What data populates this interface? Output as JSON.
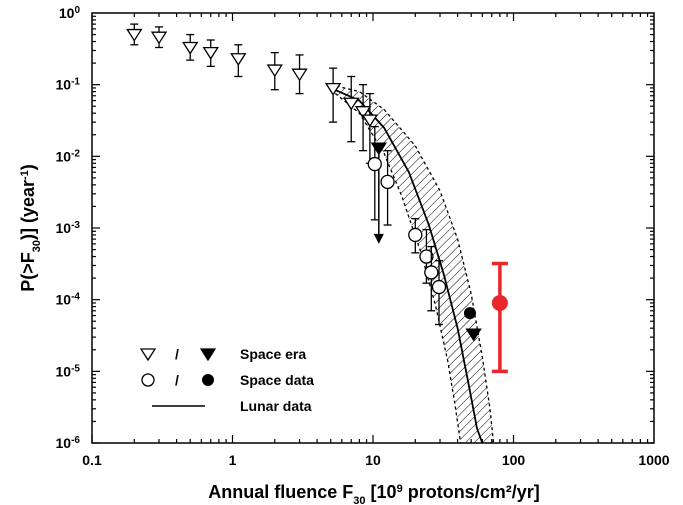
{
  "chart_data": {
    "type": "scatter",
    "x_scale": "log",
    "y_scale": "log",
    "xlim": [
      0.1,
      1000
    ],
    "ylim": [
      1e-06,
      1
    ],
    "x_ticks": [
      {
        "value": 0.1,
        "label": "0.1"
      },
      {
        "value": 1,
        "label": "1"
      },
      {
        "value": 10,
        "label": "10"
      },
      {
        "value": 100,
        "label": "100"
      },
      {
        "value": 1000,
        "label": "1000"
      }
    ],
    "y_ticks": [
      {
        "value": 1,
        "base": "10",
        "exp": "0"
      },
      {
        "value": 0.1,
        "base": "10",
        "exp": "-1"
      },
      {
        "value": 0.01,
        "base": "10",
        "exp": "-2"
      },
      {
        "value": 0.001,
        "base": "10",
        "exp": "-3"
      },
      {
        "value": 0.0001,
        "base": "10",
        "exp": "-4"
      },
      {
        "value": 1e-05,
        "base": "10",
        "exp": "-5"
      },
      {
        "value": 1e-06,
        "base": "10",
        "exp": "-6"
      }
    ],
    "xlabel": {
      "main": "Annual fluence F",
      "sub": "30",
      "rest1": " [10",
      "sup": "9",
      "rest2": " protons/cm²/yr]"
    },
    "ylabel": {
      "p1": "P(>F",
      "sub": "30",
      "p2": ")] (year",
      "sup": "-1",
      "p3": ")"
    },
    "legend": {
      "slash": "/",
      "space_era": "Space era",
      "space_data": "Space data",
      "lunar_data": "Lunar data",
      "position": "bottom-left"
    },
    "series": [
      {
        "name": "Space era",
        "marker": "triangle-open",
        "points": [
          {
            "x": 0.2,
            "y": 0.5,
            "lo": 0.36,
            "hi": 0.7
          },
          {
            "x": 0.3,
            "y": 0.46,
            "lo": 0.33,
            "hi": 0.64
          },
          {
            "x": 0.5,
            "y": 0.33,
            "lo": 0.22,
            "hi": 0.5
          },
          {
            "x": 0.7,
            "y": 0.28,
            "lo": 0.18,
            "hi": 0.42
          },
          {
            "x": 1.1,
            "y": 0.23,
            "lo": 0.13,
            "hi": 0.36
          },
          {
            "x": 2.0,
            "y": 0.16,
            "lo": 0.085,
            "hi": 0.28
          },
          {
            "x": 3.0,
            "y": 0.14,
            "lo": 0.075,
            "hi": 0.26
          },
          {
            "x": 5.2,
            "y": 0.088,
            "lo": 0.03,
            "hi": 0.17
          },
          {
            "x": 7.0,
            "y": 0.055,
            "lo": 0.016,
            "hi": 0.13
          },
          {
            "x": 8.5,
            "y": 0.042,
            "lo": 0.012,
            "hi": 0.1
          },
          {
            "x": 9.5,
            "y": 0.032,
            "lo": 0.008,
            "hi": 0.075
          }
        ]
      },
      {
        "name": "Space era",
        "marker": "triangle-filled",
        "points": [
          {
            "x": 11,
            "y": 0.013,
            "arrow_to": 0.0006
          },
          {
            "x": 52,
            "y": 3.3e-05
          }
        ]
      },
      {
        "name": "Space data",
        "marker": "circle-open",
        "points": [
          {
            "x": 10.3,
            "y": 0.0078,
            "lo": 0.0013,
            "hi": 0.026
          },
          {
            "x": 12.7,
            "y": 0.0044,
            "lo": 0.0011,
            "hi": 0.012
          },
          {
            "x": 20,
            "y": 0.0008,
            "lo": 0.00045,
            "hi": 0.00135
          },
          {
            "x": 24,
            "y": 0.0004,
            "lo": 0.00017,
            "hi": 0.00095
          },
          {
            "x": 26,
            "y": 0.00024,
            "lo": 7e-05,
            "hi": 0.00055
          },
          {
            "x": 29.5,
            "y": 0.00015,
            "lo": 4.5e-05,
            "hi": 0.00035
          }
        ]
      },
      {
        "name": "Space data",
        "marker": "circle-filled",
        "points": [
          {
            "x": 49,
            "y": 6.5e-05
          }
        ]
      },
      {
        "name": "",
        "marker": "circle-filled-red",
        "color": "#e8262b",
        "points": [
          {
            "x": 80,
            "y": 9e-05,
            "lo": 1e-05,
            "hi": 0.00032
          }
        ]
      },
      {
        "name": "Lunar data",
        "marker": "line",
        "line": [
          {
            "x": 5.0,
            "y": 0.09
          },
          {
            "x": 8,
            "y": 0.06
          },
          {
            "x": 12,
            "y": 0.025
          },
          {
            "x": 18,
            "y": 0.006
          },
          {
            "x": 25,
            "y": 0.0011
          },
          {
            "x": 32,
            "y": 0.00022
          },
          {
            "x": 40,
            "y": 4e-05
          },
          {
            "x": 48,
            "y": 6.5e-06
          },
          {
            "x": 55,
            "y": 1.6e-06
          },
          {
            "x": 60,
            "y": 1e-06
          }
        ],
        "band_upper": [
          {
            "x": 5.0,
            "y": 0.1
          },
          {
            "x": 8,
            "y": 0.08
          },
          {
            "x": 12,
            "y": 0.045
          },
          {
            "x": 20,
            "y": 0.014
          },
          {
            "x": 30,
            "y": 0.0033
          },
          {
            "x": 40,
            "y": 0.0007
          },
          {
            "x": 50,
            "y": 0.00012
          },
          {
            "x": 60,
            "y": 1.6e-05
          },
          {
            "x": 68,
            "y": 3e-06
          },
          {
            "x": 72,
            "y": 1e-06
          }
        ],
        "band_lower": [
          {
            "x": 5.0,
            "y": 0.085
          },
          {
            "x": 8,
            "y": 0.04
          },
          {
            "x": 12,
            "y": 0.011
          },
          {
            "x": 16,
            "y": 0.0028
          },
          {
            "x": 22,
            "y": 0.00045
          },
          {
            "x": 28,
            "y": 8e-05
          },
          {
            "x": 34,
            "y": 1.4e-05
          },
          {
            "x": 38,
            "y": 3.8e-06
          },
          {
            "x": 42,
            "y": 1e-06
          }
        ]
      }
    ]
  }
}
